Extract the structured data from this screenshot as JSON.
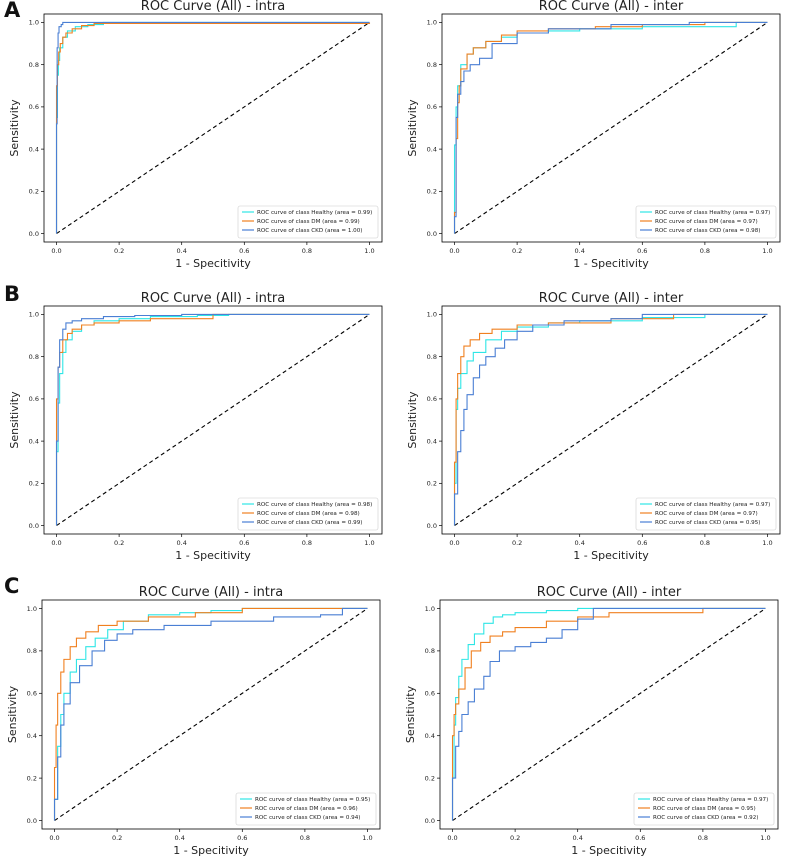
{
  "figure": {
    "panels": [
      {
        "letter": "A"
      },
      {
        "letter": "B"
      },
      {
        "letter": "C"
      }
    ]
  },
  "colors": {
    "Healthy": "#2ee6e6",
    "DM": "#f08020",
    "CKD": "#4a7fd4",
    "diagonal": "#000000"
  },
  "chart_data": [
    {
      "type": "line",
      "panel": "A",
      "position": "left",
      "title": "ROC Curve (All) - intra",
      "xlabel": "1 - Specitivity",
      "ylabel": "Sensitivity",
      "xlim": [
        0,
        1
      ],
      "ylim": [
        0,
        1
      ],
      "xticks": [
        "0.0",
        "0.2",
        "0.4",
        "0.6",
        "0.8",
        "1.0"
      ],
      "yticks": [
        "0.0",
        "0.2",
        "0.4",
        "0.6",
        "0.8",
        "1.0"
      ],
      "legend_position": "bottom-right",
      "series": [
        {
          "name": "Healthy",
          "label": "ROC curve of class Healthy (area = 0.99)",
          "x": [
            0,
            0,
            0.003,
            0.006,
            0.01,
            0.02,
            0.035,
            0.06,
            0.1,
            0.15,
            1
          ],
          "y": [
            0,
            0.55,
            0.75,
            0.82,
            0.88,
            0.93,
            0.96,
            0.98,
            0.99,
            1.0,
            1.0
          ]
        },
        {
          "name": "DM",
          "label": "ROC curve of class DM (area = 0.99)",
          "x": [
            0,
            0,
            0.003,
            0.007,
            0.012,
            0.02,
            0.03,
            0.05,
            0.08,
            0.12,
            1
          ],
          "y": [
            0,
            0.7,
            0.8,
            0.86,
            0.9,
            0.93,
            0.95,
            0.97,
            0.985,
            0.995,
            1.0
          ]
        },
        {
          "name": "CKD",
          "label": "ROC curve of class CKD (area = 1.00)",
          "x": [
            0,
            0,
            0.002,
            0.005,
            0.008,
            0.015,
            0.02,
            0.05,
            1
          ],
          "y": [
            0,
            0.52,
            0.88,
            0.95,
            0.98,
            0.99,
            1.0,
            1.0,
            1.0
          ]
        }
      ]
    },
    {
      "type": "line",
      "panel": "A",
      "position": "right",
      "title": "ROC Curve (All) - inter",
      "xlabel": "1 - Specitivity",
      "ylabel": "Sensitivity",
      "xlim": [
        0,
        1
      ],
      "ylim": [
        0,
        1
      ],
      "xticks": [
        "0.0",
        "0.2",
        "0.4",
        "0.6",
        "0.8",
        "1.0"
      ],
      "yticks": [
        "0.0",
        "0.2",
        "0.4",
        "0.6",
        "0.8",
        "1.0"
      ],
      "legend_position": "bottom-right",
      "series": [
        {
          "name": "Healthy",
          "label": "ROC curve of class Healthy (area = 0.97)",
          "x": [
            0,
            0,
            0.005,
            0.01,
            0.02,
            0.04,
            0.06,
            0.1,
            0.15,
            0.2,
            0.3,
            0.4,
            0.6,
            0.9,
            1
          ],
          "y": [
            0,
            0.42,
            0.6,
            0.7,
            0.8,
            0.85,
            0.88,
            0.91,
            0.93,
            0.95,
            0.96,
            0.97,
            0.98,
            1.0,
            1.0
          ]
        },
        {
          "name": "DM",
          "label": "ROC curve of class DM (area = 0.97)",
          "x": [
            0,
            0,
            0.005,
            0.01,
            0.015,
            0.02,
            0.04,
            0.06,
            0.1,
            0.15,
            0.2,
            0.3,
            0.45,
            0.6,
            0.8,
            1
          ],
          "y": [
            0,
            0.1,
            0.45,
            0.62,
            0.7,
            0.78,
            0.85,
            0.88,
            0.91,
            0.94,
            0.96,
            0.97,
            0.98,
            0.99,
            1.0,
            1.0
          ]
        },
        {
          "name": "CKD",
          "label": "ROC curve of class CKD (area = 0.98)",
          "x": [
            0,
            0,
            0.005,
            0.01,
            0.02,
            0.03,
            0.05,
            0.08,
            0.12,
            0.2,
            0.3,
            0.5,
            0.75,
            1
          ],
          "y": [
            0,
            0.08,
            0.55,
            0.66,
            0.72,
            0.77,
            0.8,
            0.83,
            0.9,
            0.95,
            0.97,
            0.99,
            1.0,
            1.0
          ]
        }
      ]
    },
    {
      "type": "line",
      "panel": "B",
      "position": "left",
      "title": "ROC Curve (All) - intra",
      "xlabel": "1 - Specitivity",
      "ylabel": "Sensitivity",
      "xlim": [
        0,
        1
      ],
      "ylim": [
        0,
        1
      ],
      "xticks": [
        "0.0",
        "0.2",
        "0.4",
        "0.6",
        "0.8",
        "1.0"
      ],
      "yticks": [
        "0.0",
        "0.2",
        "0.4",
        "0.6",
        "0.8",
        "1.0"
      ],
      "legend_position": "bottom-right",
      "series": [
        {
          "name": "Healthy",
          "label": "ROC curve of class Healthy (area = 0.98)",
          "x": [
            0,
            0,
            0.005,
            0.01,
            0.02,
            0.03,
            0.05,
            0.08,
            0.12,
            0.2,
            0.3,
            0.45,
            0.55,
            1
          ],
          "y": [
            0,
            0.35,
            0.58,
            0.72,
            0.82,
            0.88,
            0.92,
            0.95,
            0.97,
            0.98,
            0.99,
            0.995,
            1.0,
            1.0
          ]
        },
        {
          "name": "DM",
          "label": "ROC curve of class DM (area = 0.98)",
          "x": [
            0,
            0,
            0.005,
            0.01,
            0.02,
            0.035,
            0.05,
            0.08,
            0.12,
            0.2,
            0.3,
            0.5,
            1
          ],
          "y": [
            0,
            0.6,
            0.75,
            0.82,
            0.88,
            0.91,
            0.93,
            0.95,
            0.96,
            0.97,
            0.98,
            1.0,
            1.0
          ]
        },
        {
          "name": "CKD",
          "label": "ROC curve of class CKD (area = 0.99)",
          "x": [
            0,
            0,
            0.005,
            0.01,
            0.02,
            0.03,
            0.05,
            0.08,
            0.15,
            0.25,
            0.4,
            1
          ],
          "y": [
            0,
            0.4,
            0.75,
            0.88,
            0.93,
            0.96,
            0.97,
            0.98,
            0.99,
            0.995,
            1.0,
            1.0
          ]
        }
      ]
    },
    {
      "type": "line",
      "panel": "B",
      "position": "right",
      "title": "ROC Curve (All) - inter",
      "xlabel": "1 - Specitivity",
      "ylabel": "Sensitivity",
      "xlim": [
        0,
        1
      ],
      "ylim": [
        0,
        1
      ],
      "xticks": [
        "0.0",
        "0.2",
        "0.4",
        "0.6",
        "0.8",
        "1.0"
      ],
      "yticks": [
        "0.0",
        "0.2",
        "0.4",
        "0.6",
        "0.8",
        "1.0"
      ],
      "legend_position": "bottom-right",
      "series": [
        {
          "name": "Healthy",
          "label": "ROC curve of class Healthy (area = 0.97)",
          "x": [
            0,
            0,
            0.005,
            0.01,
            0.02,
            0.04,
            0.06,
            0.1,
            0.15,
            0.2,
            0.3,
            0.4,
            0.6,
            0.8,
            1
          ],
          "y": [
            0,
            0.2,
            0.55,
            0.65,
            0.72,
            0.78,
            0.82,
            0.88,
            0.92,
            0.94,
            0.96,
            0.97,
            0.985,
            1.0,
            1.0
          ]
        },
        {
          "name": "DM",
          "label": "ROC curve of class DM (area = 0.97)",
          "x": [
            0,
            0,
            0.005,
            0.01,
            0.02,
            0.03,
            0.05,
            0.08,
            0.12,
            0.2,
            0.3,
            0.5,
            0.7,
            1
          ],
          "y": [
            0,
            0.3,
            0.6,
            0.72,
            0.8,
            0.85,
            0.88,
            0.91,
            0.93,
            0.95,
            0.96,
            0.98,
            1.0,
            1.0
          ]
        },
        {
          "name": "CKD",
          "label": "ROC curve of class CKD (area = 0.95)",
          "x": [
            0,
            0,
            0.01,
            0.02,
            0.03,
            0.04,
            0.06,
            0.08,
            0.1,
            0.13,
            0.16,
            0.2,
            0.25,
            0.35,
            0.5,
            0.6,
            1
          ],
          "y": [
            0,
            0.15,
            0.35,
            0.45,
            0.55,
            0.62,
            0.7,
            0.76,
            0.8,
            0.84,
            0.88,
            0.92,
            0.95,
            0.97,
            0.98,
            1.0,
            1.0
          ]
        }
      ]
    },
    {
      "type": "line",
      "panel": "C",
      "position": "left",
      "title": "ROC Curve (All) - intra",
      "xlabel": "1 - Specitivity",
      "ylabel": "Sensitivity",
      "xlim": [
        0,
        1
      ],
      "ylim": [
        0,
        1
      ],
      "xticks": [
        "0.0",
        "0.2",
        "0.4",
        "0.6",
        "0.8",
        "1.0"
      ],
      "yticks": [
        "0.0",
        "0.2",
        "0.4",
        "0.6",
        "0.8",
        "1.0"
      ],
      "legend_position": "bottom-right",
      "series": [
        {
          "name": "Healthy",
          "label": "ROC curve of class Healthy (area = 0.95)",
          "x": [
            0,
            0,
            0.01,
            0.02,
            0.03,
            0.05,
            0.07,
            0.1,
            0.13,
            0.17,
            0.22,
            0.3,
            0.4,
            0.5,
            0.6,
            1
          ],
          "y": [
            0,
            0.1,
            0.35,
            0.5,
            0.6,
            0.7,
            0.76,
            0.82,
            0.86,
            0.9,
            0.94,
            0.97,
            0.98,
            0.99,
            1.0,
            1.0
          ]
        },
        {
          "name": "DM",
          "label": "ROC curve of class DM (area = 0.96)",
          "x": [
            0,
            0,
            0.005,
            0.01,
            0.02,
            0.03,
            0.05,
            0.07,
            0.1,
            0.14,
            0.2,
            0.3,
            0.45,
            0.6,
            1
          ],
          "y": [
            0,
            0.25,
            0.45,
            0.6,
            0.7,
            0.76,
            0.82,
            0.86,
            0.89,
            0.92,
            0.94,
            0.96,
            0.98,
            1.0,
            1.0
          ]
        },
        {
          "name": "CKD",
          "label": "ROC curve of class CKD (area = 0.94)",
          "x": [
            0,
            0,
            0.01,
            0.02,
            0.03,
            0.05,
            0.08,
            0.12,
            0.16,
            0.2,
            0.25,
            0.35,
            0.5,
            0.7,
            0.85,
            0.92,
            1
          ],
          "y": [
            0,
            0.1,
            0.3,
            0.45,
            0.55,
            0.65,
            0.73,
            0.8,
            0.85,
            0.88,
            0.9,
            0.92,
            0.94,
            0.96,
            0.97,
            1.0,
            1.0
          ]
        }
      ]
    },
    {
      "type": "line",
      "panel": "C",
      "position": "right",
      "title": "ROC Curve (All) - inter",
      "xlabel": "1 - Specitivity",
      "ylabel": "Sensitivity",
      "xlim": [
        0,
        1
      ],
      "ylim": [
        0,
        1
      ],
      "xticks": [
        "0.0",
        "0.2",
        "0.4",
        "0.6",
        "0.8",
        "1.0"
      ],
      "yticks": [
        "0.0",
        "0.2",
        "0.4",
        "0.6",
        "0.8",
        "1.0"
      ],
      "legend_position": "bottom-right",
      "series": [
        {
          "name": "Healthy",
          "label": "ROC curve of class Healthy (area = 0.97)",
          "x": [
            0,
            0,
            0.005,
            0.01,
            0.02,
            0.03,
            0.05,
            0.07,
            0.1,
            0.13,
            0.16,
            0.2,
            0.3,
            0.4,
            1
          ],
          "y": [
            0,
            0.2,
            0.45,
            0.58,
            0.68,
            0.76,
            0.83,
            0.88,
            0.93,
            0.96,
            0.97,
            0.98,
            0.99,
            1.0,
            1.0
          ]
        },
        {
          "name": "DM",
          "label": "ROC curve of class DM (area = 0.95)",
          "x": [
            0,
            0,
            0.005,
            0.01,
            0.02,
            0.04,
            0.06,
            0.09,
            0.12,
            0.16,
            0.2,
            0.3,
            0.4,
            0.5,
            0.8,
            1
          ],
          "y": [
            0,
            0.4,
            0.5,
            0.55,
            0.62,
            0.72,
            0.8,
            0.84,
            0.87,
            0.89,
            0.91,
            0.94,
            0.96,
            0.98,
            1.0,
            1.0
          ]
        },
        {
          "name": "CKD",
          "label": "ROC curve of class CKD (area = 0.92)",
          "x": [
            0,
            0,
            0.01,
            0.02,
            0.03,
            0.05,
            0.07,
            0.1,
            0.12,
            0.15,
            0.2,
            0.25,
            0.3,
            0.35,
            0.4,
            0.45,
            1
          ],
          "y": [
            0,
            0.2,
            0.35,
            0.42,
            0.5,
            0.56,
            0.62,
            0.68,
            0.75,
            0.8,
            0.82,
            0.84,
            0.86,
            0.9,
            0.95,
            1.0,
            1.0
          ]
        }
      ]
    }
  ]
}
